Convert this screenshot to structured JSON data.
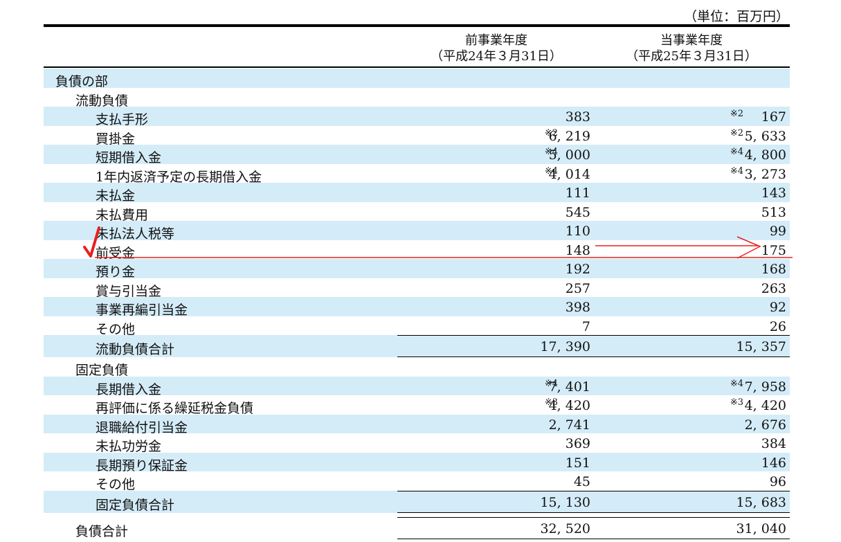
{
  "unit_label": "（単位：百万円）",
  "columns": {
    "prev": {
      "line1": "前事業年度",
      "line2": "（平成24年３月31日）"
    },
    "curr": {
      "line1": "当事業年度",
      "line2": "（平成25年３月31日）"
    }
  },
  "rows": [
    {
      "label": "負債の部",
      "level": 0,
      "blue": true
    },
    {
      "label": "流動負債",
      "level": 1,
      "blue": false
    },
    {
      "label": "支払手形",
      "level": 2,
      "blue": true,
      "prev": "383",
      "curr": "167",
      "curr_note": "※2"
    },
    {
      "label": "買掛金",
      "level": 2,
      "blue": false,
      "prev": "6, 219",
      "prev_note": "※2",
      "curr": "5, 633",
      "curr_note": "※2"
    },
    {
      "label": "短期借入金",
      "level": 2,
      "blue": true,
      "prev": "5, 000",
      "prev_note": "※4",
      "curr": "4, 800",
      "curr_note": "※4"
    },
    {
      "label": "1年内返済予定の長期借入金",
      "level": 2,
      "blue": false,
      "prev": "4, 014",
      "prev_note": "※4",
      "curr": "3, 273",
      "curr_note": "※4"
    },
    {
      "label": "未払金",
      "level": 2,
      "blue": true,
      "prev": "111",
      "curr": "143"
    },
    {
      "label": "未払費用",
      "level": 2,
      "blue": false,
      "prev": "545",
      "curr": "513"
    },
    {
      "label": "未払法人税等",
      "level": 2,
      "blue": true,
      "prev": "110",
      "curr": "99"
    },
    {
      "label": "前受金",
      "level": 2,
      "blue": false,
      "prev": "148",
      "curr": "175"
    },
    {
      "label": "預り金",
      "level": 2,
      "blue": true,
      "prev": "192",
      "curr": "168"
    },
    {
      "label": "賞与引当金",
      "level": 2,
      "blue": false,
      "prev": "257",
      "curr": "263"
    },
    {
      "label": "事業再編引当金",
      "level": 2,
      "blue": true,
      "prev": "398",
      "curr": "92"
    },
    {
      "label": "その他",
      "level": 2,
      "blue": false,
      "prev": "7",
      "curr": "26"
    },
    {
      "label": "流動負債合計",
      "level": 2,
      "blue": true,
      "total": true,
      "prev": "17, 390",
      "curr": "15, 357"
    },
    {
      "label": "固定負債",
      "level": 1,
      "blue": false
    },
    {
      "label": "長期借入金",
      "level": 2,
      "blue": true,
      "prev": "7, 401",
      "prev_note": "※4",
      "curr": "7, 958",
      "curr_note": "※4"
    },
    {
      "label": "再評価に係る繰延税金負債",
      "level": 2,
      "blue": false,
      "prev": "4, 420",
      "prev_note": "※3",
      "curr": "4, 420",
      "curr_note": "※3"
    },
    {
      "label": "退職給付引当金",
      "level": 2,
      "blue": true,
      "prev": "2, 741",
      "curr": "2, 676"
    },
    {
      "label": "未払功労金",
      "level": 2,
      "blue": false,
      "prev": "369",
      "curr": "384"
    },
    {
      "label": "長期預り保証金",
      "level": 2,
      "blue": true,
      "prev": "151",
      "curr": "146"
    },
    {
      "label": "その他",
      "level": 2,
      "blue": false,
      "prev": "45",
      "curr": "96"
    },
    {
      "label": "固定負債合計",
      "level": 2,
      "blue": true,
      "total": true,
      "prev": "15, 130",
      "curr": "15, 683"
    },
    {
      "gap": true
    },
    {
      "label": "負債合計",
      "level": 1,
      "blue": false,
      "total": true,
      "prev": "32, 520",
      "curr": "31, 040"
    }
  ],
  "annotation_color": "#e8201e"
}
